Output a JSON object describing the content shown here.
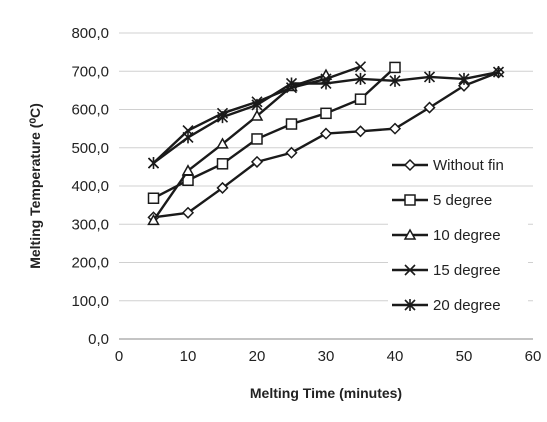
{
  "chart_data": {
    "type": "line",
    "xlabel": "Melting Time (minutes)",
    "ylabel": "Melting Temperature (⁰C)",
    "xlim": [
      0,
      60
    ],
    "ylim": [
      0,
      800
    ],
    "x_ticks": [
      "0",
      "10",
      "20",
      "30",
      "40",
      "50",
      "60"
    ],
    "y_ticks": [
      "0,0",
      "100,0",
      "200,0",
      "300,0",
      "400,0",
      "500,0",
      "600,0",
      "700,0",
      "800,0"
    ],
    "grid": "horizontal",
    "legend_position": "right",
    "series": [
      {
        "name": "Without fin",
        "marker": "diamond",
        "x": [
          5,
          10,
          15,
          20,
          25,
          30,
          35,
          40,
          45,
          50,
          55
        ],
        "y": [
          318,
          330,
          395,
          463,
          487,
          537,
          543,
          550,
          605,
          662,
          697
        ]
      },
      {
        "name": "5 degree",
        "marker": "square",
        "x": [
          5,
          10,
          15,
          20,
          25,
          30,
          35,
          40
        ],
        "y": [
          368,
          415,
          458,
          523,
          562,
          590,
          627,
          710
        ]
      },
      {
        "name": "10 degree",
        "marker": "triangle",
        "x": [
          5,
          10,
          15,
          20,
          25,
          30
        ],
        "y": [
          310,
          440,
          510,
          583,
          660,
          690
        ]
      },
      {
        "name": "15 degree",
        "marker": "x",
        "x": [
          5,
          10,
          15,
          20,
          25,
          30,
          35
        ],
        "y": [
          460,
          545,
          590,
          620,
          657,
          680,
          712
        ]
      },
      {
        "name": "20 degree",
        "marker": "asterisk",
        "x": [
          5,
          10,
          15,
          20,
          25,
          30,
          35,
          40,
          45,
          50,
          55
        ],
        "y": [
          460,
          527,
          580,
          612,
          668,
          668,
          680,
          675,
          685,
          680,
          698
        ]
      }
    ]
  }
}
